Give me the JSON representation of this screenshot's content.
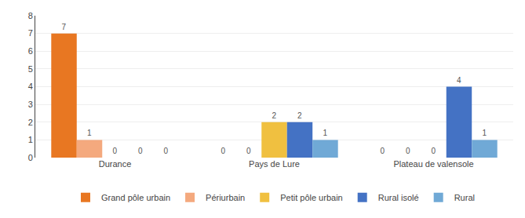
{
  "chart_data": {
    "type": "bar",
    "categories": [
      "Durance",
      "Pays de Lure",
      "Plateau de valensole"
    ],
    "series": [
      {
        "name": "Grand pôle urbain",
        "color": "#E87722",
        "values": [
          7,
          0,
          0
        ]
      },
      {
        "name": "Périurbain",
        "color": "#F4A97E",
        "values": [
          1,
          0,
          0
        ]
      },
      {
        "name": "Petit pôle urbain",
        "color": "#F0C040",
        "values": [
          0,
          2,
          0
        ]
      },
      {
        "name": "Rural isolé",
        "color": "#4472C4",
        "values": [
          0,
          2,
          4
        ]
      },
      {
        "name": "Rural",
        "color": "#70A9D6",
        "values": [
          0,
          1,
          1
        ]
      }
    ],
    "ylim": [
      0,
      8
    ],
    "yticks": [
      0,
      1,
      2,
      3,
      4,
      5,
      6,
      7,
      8
    ],
    "grid": true,
    "legend": "bottom",
    "data_labels": true
  }
}
